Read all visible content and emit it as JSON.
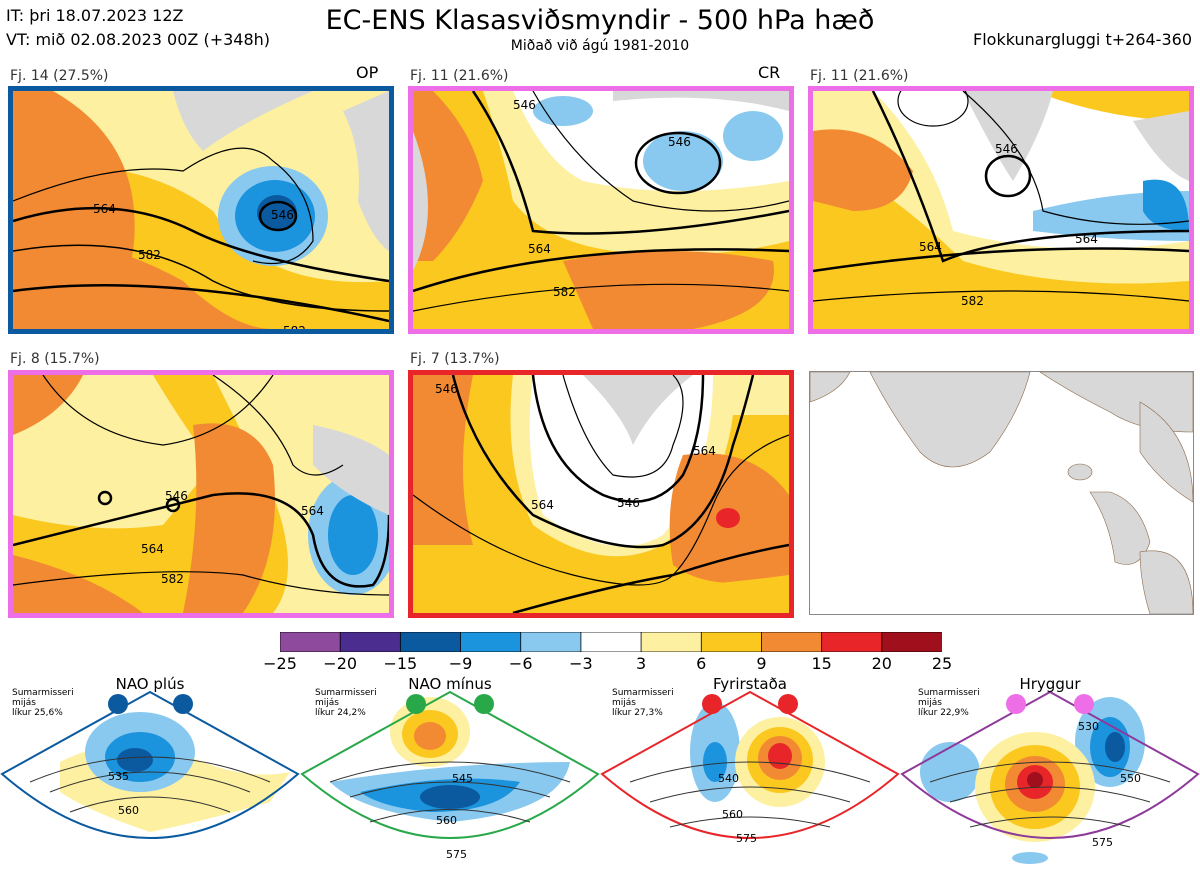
{
  "header": {
    "it_line": "IT: þri 18.07.2023 12Z",
    "vt_line": "VT: mið 02.08.2023 00Z  (+348h)",
    "title": "EC-ENS Klasasviðsmyndir - 500 hPa hæð",
    "subtitle": "Miðað við ágú 1981-2010",
    "right_label": "Flokkunargluggi t+264-360"
  },
  "panels": [
    {
      "label": "Fj. 14 (27.5%)",
      "tag": "OP",
      "frame_color": "#0b5aa0",
      "contours": [
        "546",
        "564",
        "582",
        "582"
      ]
    },
    {
      "label": "Fj. 11 (21.6%)",
      "tag": "CR",
      "frame_color": "#ee6ee8",
      "contours": [
        "546",
        "564",
        "582",
        "546"
      ]
    },
    {
      "label": "Fj. 11 (21.6%)",
      "tag": "",
      "frame_color": "#ee6ee8",
      "contours": [
        "546",
        "564",
        "582",
        "564"
      ]
    },
    {
      "label": "Fj. 8 (15.7%)",
      "tag": "",
      "frame_color": "#ee6ee8",
      "contours": [
        "546",
        "564",
        "582",
        "564"
      ]
    },
    {
      "label": "Fj. 7 (13.7%)",
      "tag": "",
      "frame_color": "#e8262a",
      "contours": [
        "546",
        "564",
        "546",
        "564"
      ]
    }
  ],
  "colorbar": {
    "ticks": [
      "−25",
      "−20",
      "−15",
      "−9",
      "−6",
      "−3",
      "3",
      "6",
      "9",
      "15",
      "20",
      "25"
    ],
    "colors": [
      "#8e4b9d",
      "#4b2d8f",
      "#0b5aa0",
      "#1b93dd",
      "#89c9ef",
      "#ffffff",
      "#fdf0a0",
      "#fbc81f",
      "#f28a33",
      "#e8262a",
      "#a0101c"
    ]
  },
  "regimes": [
    {
      "title": "NAO plús",
      "note": [
        "Sumarmisseri",
        "mijás",
        "líkur 25,6%"
      ],
      "dot_color": "#0b5aa0",
      "frame_color": "#0b5aa0",
      "contours": [
        "535",
        "560"
      ]
    },
    {
      "title": "NAO mínus",
      "note": [
        "Sumarmisseri",
        "mijás",
        "líkur 24,2%"
      ],
      "dot_color": "#29a84a",
      "frame_color": "#29a84a",
      "contours": [
        "545",
        "560",
        "575"
      ]
    },
    {
      "title": "Fyrirstaða",
      "note": [
        "Sumarmisseri",
        "mijás",
        "líkur 27,3%"
      ],
      "dot_color": "#e8262a",
      "frame_color": "#e8262a",
      "contours": [
        "540",
        "560",
        "575"
      ]
    },
    {
      "title": "Hryggur",
      "note": [
        "Sumarmisseri",
        "mijás",
        "líkur 22,9%"
      ],
      "dot_color": "#ee6ee8",
      "frame_color": "#8e3a9a",
      "contours": [
        "530",
        "550",
        "575"
      ]
    }
  ]
}
